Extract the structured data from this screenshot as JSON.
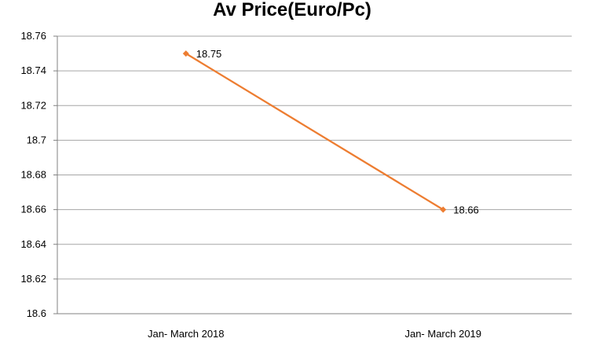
{
  "chart_data": {
    "type": "line",
    "title": "Av Price(Euro/Pc)",
    "xlabel": "",
    "ylabel": "",
    "categories": [
      "Jan- March 2018",
      "Jan- March 2019"
    ],
    "series": [
      {
        "values": [
          18.75,
          18.66
        ],
        "data_labels": [
          "18.75",
          "18.66"
        ],
        "color": "#ED7D31"
      }
    ],
    "ylim": [
      18.6,
      18.76
    ],
    "yticks": [
      "18.6",
      "18.62",
      "18.64",
      "18.66",
      "18.68",
      "18.7",
      "18.72",
      "18.74",
      "18.76"
    ],
    "grid": true,
    "legend": "none",
    "colors": {
      "gridline": "#A6A6A6",
      "axis": "#808080",
      "line": "#ED7D31"
    }
  }
}
